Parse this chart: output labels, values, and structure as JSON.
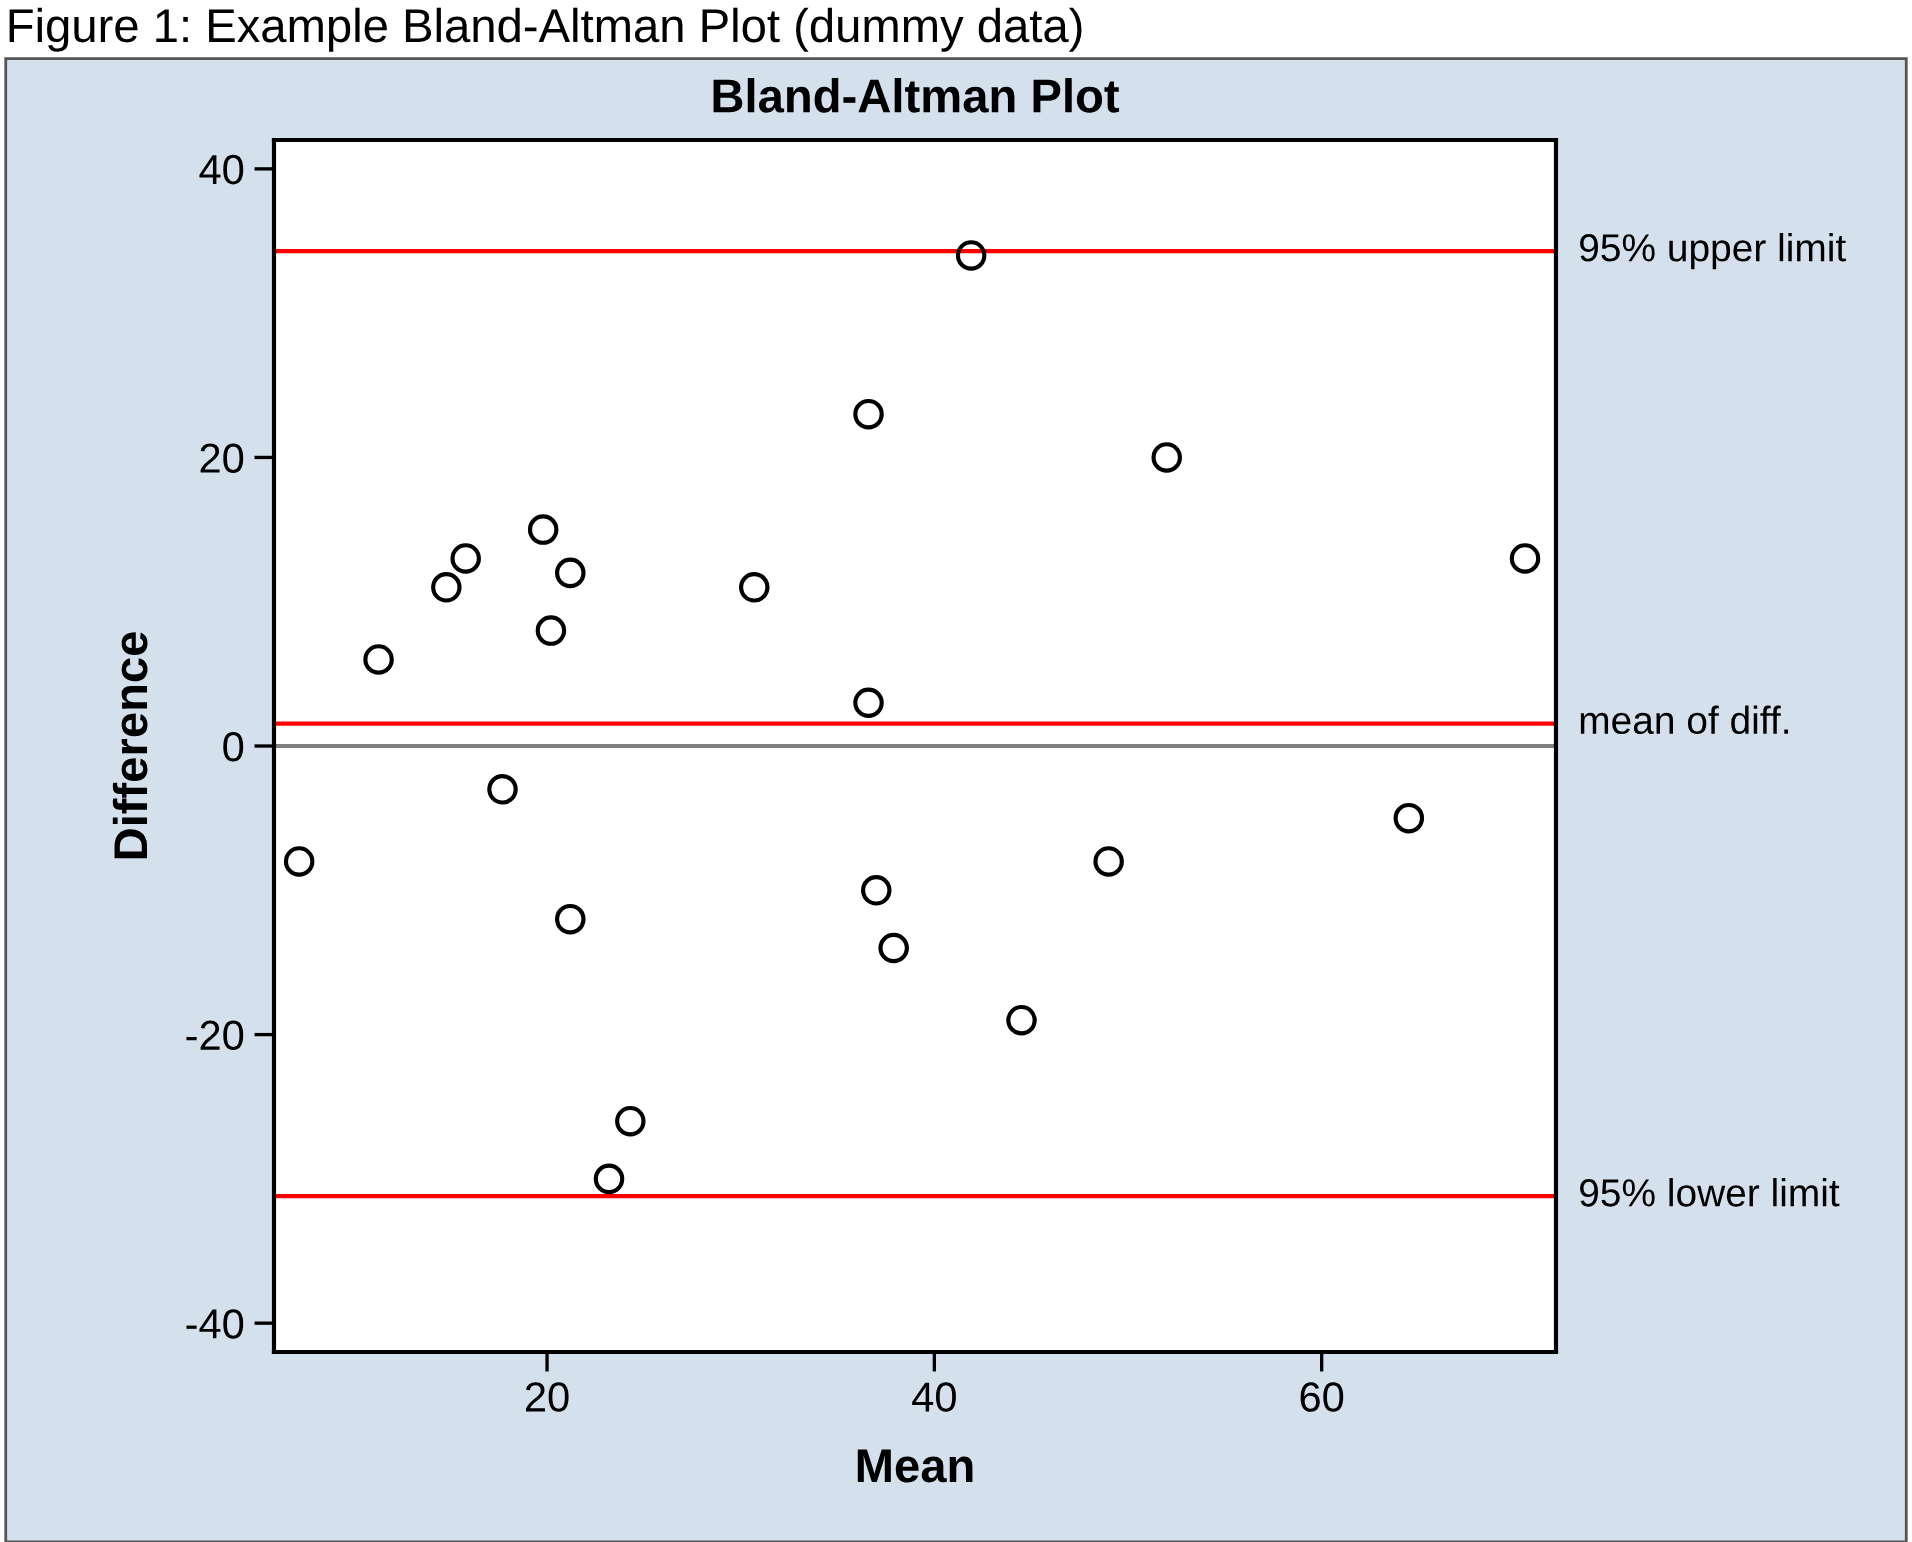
{
  "chart_data": {
    "type": "scatter",
    "title": "Bland-Altman Plot",
    "xlabel": "Mean",
    "ylabel": "Difference",
    "annotations": [
      "Figure 1: Example Bland-Altman Plot (dummy data)"
    ],
    "x": [
      7.2,
      11.3,
      14.8,
      15.8,
      19.8,
      20.2,
      21.2,
      17.7,
      21.2,
      24.3,
      23.2,
      30.7,
      36.6,
      36.6,
      41.9,
      52.0,
      70.5,
      64.5,
      49.0,
      37.0,
      37.9,
      44.5
    ],
    "values": [
      -8,
      6,
      11,
      13,
      15,
      8,
      12,
      -3,
      -12,
      -26,
      -30,
      11,
      23,
      3,
      34,
      20,
      13,
      -5,
      -8,
      -10,
      -14,
      -19
    ],
    "color": "#000000",
    "marker": "circle",
    "xlim": [
      5.9,
      72.1
    ],
    "ylim": [
      -42,
      42
    ],
    "xticks": [
      20,
      40,
      60
    ],
    "yticks": [
      -40,
      -20,
      0,
      20,
      40
    ],
    "ref_lines": [
      {
        "axis": "y",
        "value": 34.3,
        "label": "95% upper limit",
        "color": "#ff0000"
      },
      {
        "axis": "y",
        "value": 1.55,
        "label": "mean of diff.",
        "color": "#ff0000"
      },
      {
        "axis": "y",
        "value": 0,
        "color": "#808080"
      },
      {
        "axis": "y",
        "value": -31.2,
        "label": "95% lower limit",
        "color": "#ff0000"
      }
    ],
    "grid": false,
    "legend": false
  }
}
